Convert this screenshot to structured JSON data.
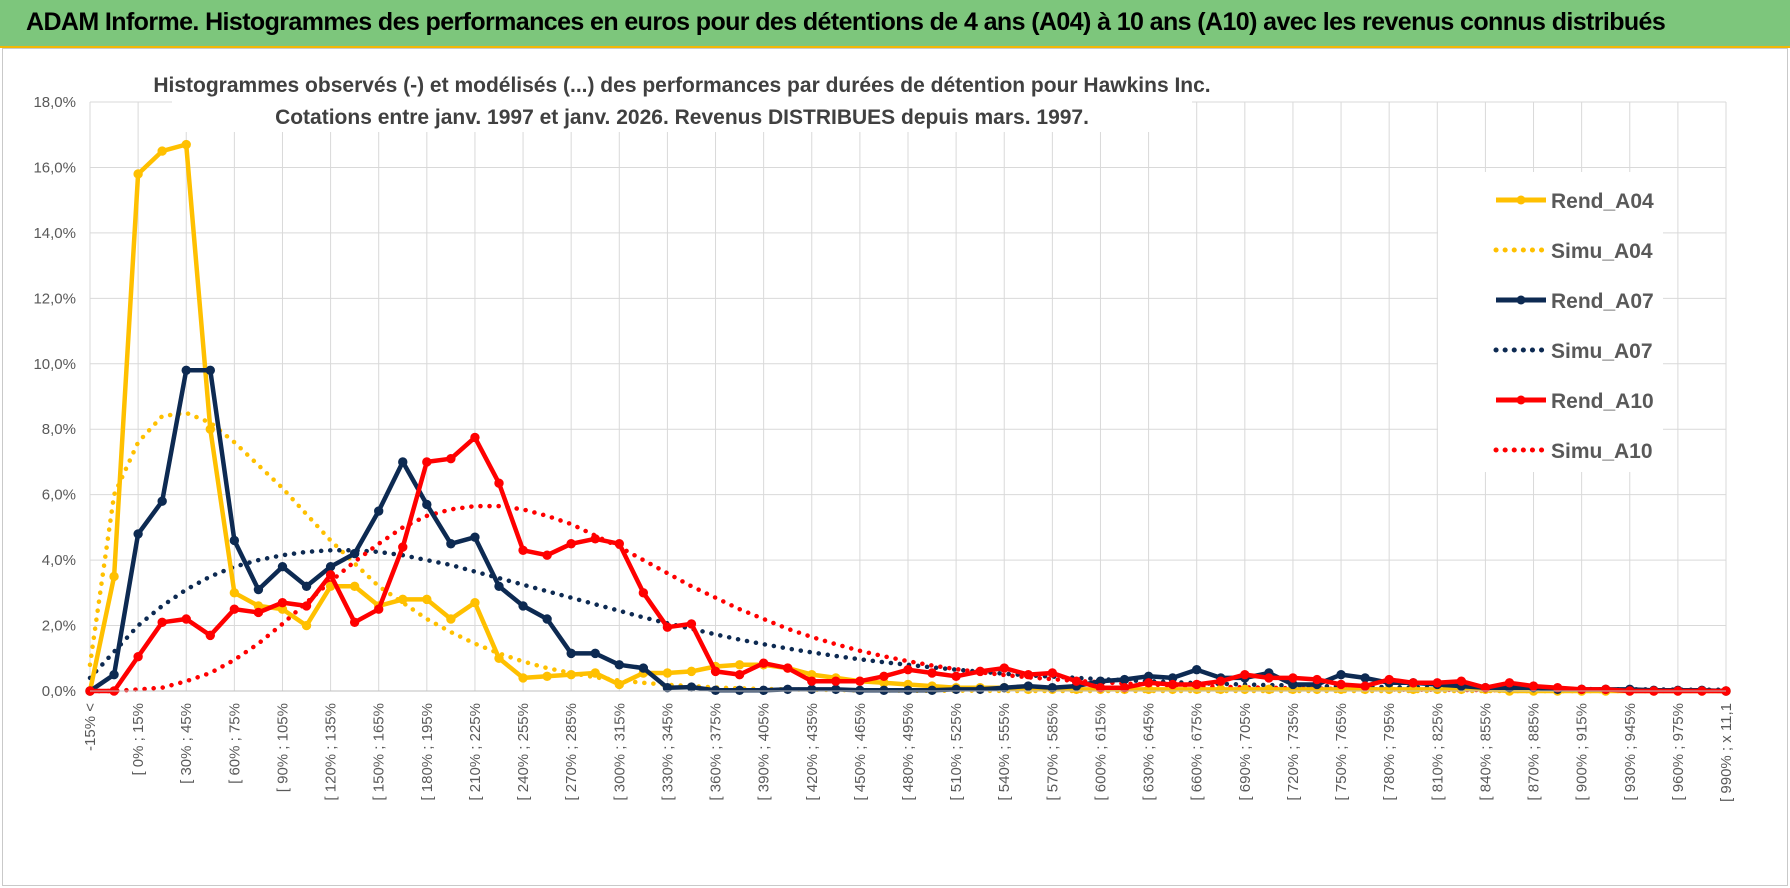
{
  "banner": {
    "title": "ADAM Informe. Histogrammes des performances en euros pour des détentions de 4 ans (A04) à 10 ans (A10) avec les revenus connus distribués",
    "color": "#7dc67c",
    "accent": "#f2b705"
  },
  "chart_data": {
    "type": "line",
    "title": "Histogrammes observés (-) et modélisés (...) des performances par durées de détention pour Hawkins Inc.",
    "subtitle": "Cotations entre janv. 1997 et janv. 2026. Revenus DISTRIBUES depuis mars. 1997.",
    "xlabel": "",
    "ylabel": "",
    "ylim": [
      0,
      18
    ],
    "y_ticks": [
      "0,0%",
      "2,0%",
      "4,0%",
      "6,0%",
      "8,0%",
      "10,0%",
      "12,0%",
      "14,0%",
      "16,0%",
      "18,0%"
    ],
    "x_labels": [
      "-15% <",
      "[ 0% ; 15%",
      "[ 30% ; 45%",
      "[ 60% ; 75%",
      "[ 90% ; 105%",
      "[ 120% ; 135%",
      "[ 150% ; 165%",
      "[ 180% ; 195%",
      "[ 210% ; 225%",
      "[ 240% ; 255%",
      "[ 270% ; 285%",
      "[ 300% ; 315%",
      "[ 330% ; 345%",
      "[ 360% ; 375%",
      "[ 390% ; 405%",
      "[ 420% ; 435%",
      "[ 450% ; 465%",
      "[ 480% ; 495%",
      "[ 510% ; 525%",
      "[ 540% ; 555%",
      "[ 570% ; 585%",
      "[ 600% ; 615%",
      "[ 630% ; 645%",
      "[ 660% ; 675%",
      "[ 690% ; 705%",
      "[ 720% ; 735%",
      "[ 750% ; 765%",
      "[ 780% ; 795%",
      "[ 810% ; 825%",
      "[ 840% ; 855%",
      "[ 870% ; 885%",
      "[ 900% ; 915%",
      "[ 930% ; 945%",
      "[ 960% ; 975%",
      "[ 990% ; x 11,1"
    ],
    "n_bins": 69,
    "legend_position": "right",
    "series": [
      {
        "name": "Rend_A04",
        "style": "solid",
        "markers": true,
        "color": "#ffc000",
        "values": [
          0,
          3.5,
          15.8,
          16.5,
          16.7,
          8.0,
          3.0,
          2.6,
          2.5,
          2.0,
          3.2,
          3.2,
          2.6,
          2.8,
          2.8,
          2.2,
          2.7,
          1.0,
          0.4,
          0.45,
          0.5,
          0.55,
          0.2,
          0.55,
          0.55,
          0.6,
          0.75,
          0.8,
          0.8,
          0.7,
          0.5,
          0.4,
          0.3,
          0.25,
          0.2,
          0.15,
          0.1,
          0.1,
          0.1,
          0.05,
          0.05,
          0.05,
          0.05,
          0.05,
          0.05,
          0.05,
          0.05,
          0.05,
          0.05,
          0.05,
          0.05,
          0.05,
          0.05,
          0.05,
          0.05,
          0.05,
          0.05,
          0.05,
          0.05,
          0,
          0,
          0,
          0,
          0,
          0,
          0,
          0,
          0,
          0
        ]
      },
      {
        "name": "Simu_A04",
        "style": "dotted",
        "markers": false,
        "color": "#ffc000",
        "values": [
          0.8,
          6.0,
          7.6,
          8.4,
          8.5,
          8.2,
          7.6,
          6.9,
          6.2,
          5.4,
          4.6,
          3.9,
          3.2,
          2.7,
          2.2,
          1.8,
          1.45,
          1.15,
          0.9,
          0.7,
          0.55,
          0.42,
          0.32,
          0.25,
          0.19,
          0.15,
          0.11,
          0.08,
          0.06,
          0.05,
          0.04,
          0.03,
          0.02,
          0.02,
          0.01,
          0.01,
          0.01,
          0.01,
          0,
          0,
          0,
          0,
          0,
          0,
          0,
          0,
          0,
          0,
          0,
          0,
          0,
          0,
          0,
          0,
          0,
          0,
          0,
          0,
          0,
          0,
          0,
          0,
          0,
          0,
          0,
          0,
          0,
          0,
          0
        ]
      },
      {
        "name": "Rend_A07",
        "style": "solid",
        "markers": true,
        "color": "#0d2a52",
        "values": [
          0,
          0.5,
          4.8,
          5.8,
          9.8,
          9.8,
          4.6,
          3.1,
          3.8,
          3.2,
          3.8,
          4.2,
          5.5,
          7.0,
          5.7,
          4.5,
          4.7,
          3.2,
          2.6,
          2.2,
          1.15,
          1.15,
          0.8,
          0.7,
          0.1,
          0.12,
          0.02,
          0.02,
          0.02,
          0.05,
          0.05,
          0.05,
          0.02,
          0.02,
          0.02,
          0.02,
          0.05,
          0.05,
          0.1,
          0.15,
          0.1,
          0.15,
          0.3,
          0.35,
          0.45,
          0.4,
          0.65,
          0.4,
          0.4,
          0.55,
          0.2,
          0.2,
          0.5,
          0.4,
          0.25,
          0.25,
          0.2,
          0.15,
          0.1,
          0.1,
          0.1,
          0.05,
          0.05,
          0.05,
          0.05,
          0.02,
          0.02,
          0.02,
          0
        ]
      },
      {
        "name": "Simu_A07",
        "style": "dotted",
        "markers": false,
        "color": "#0d2a52",
        "values": [
          0.4,
          1.2,
          2.0,
          2.6,
          3.1,
          3.5,
          3.8,
          4.0,
          4.15,
          4.25,
          4.3,
          4.3,
          4.25,
          4.15,
          4.0,
          3.85,
          3.65,
          3.45,
          3.25,
          3.05,
          2.85,
          2.65,
          2.45,
          2.25,
          2.07,
          1.9,
          1.73,
          1.57,
          1.43,
          1.3,
          1.18,
          1.07,
          0.97,
          0.88,
          0.8,
          0.72,
          0.65,
          0.59,
          0.53,
          0.48,
          0.44,
          0.4,
          0.36,
          0.33,
          0.3,
          0.27,
          0.24,
          0.22,
          0.2,
          0.18,
          0.17,
          0.15,
          0.14,
          0.13,
          0.12,
          0.11,
          0.1,
          0.09,
          0.08,
          0.07,
          0.07,
          0.06,
          0.06,
          0.05,
          0.05,
          0.05,
          0.04,
          0.04,
          0.04
        ]
      },
      {
        "name": "Rend_A10",
        "style": "solid",
        "markers": true,
        "color": "#ff0000",
        "values": [
          0,
          0,
          1.05,
          2.1,
          2.2,
          1.7,
          2.5,
          2.4,
          2.7,
          2.6,
          3.55,
          2.1,
          2.5,
          4.4,
          7.0,
          7.1,
          7.75,
          6.35,
          4.3,
          4.15,
          4.5,
          4.65,
          4.5,
          3.0,
          1.95,
          2.05,
          0.6,
          0.5,
          0.85,
          0.7,
          0.3,
          0.3,
          0.3,
          0.45,
          0.65,
          0.55,
          0.45,
          0.6,
          0.7,
          0.5,
          0.55,
          0.3,
          0.1,
          0.1,
          0.25,
          0.2,
          0.2,
          0.3,
          0.5,
          0.4,
          0.4,
          0.35,
          0.2,
          0.15,
          0.35,
          0.25,
          0.25,
          0.3,
          0.1,
          0.25,
          0.15,
          0.1,
          0.05,
          0.05,
          0,
          0,
          0,
          0,
          0
        ]
      },
      {
        "name": "Simu_A10",
        "style": "dotted",
        "markers": false,
        "color": "#ff0000",
        "values": [
          0,
          0,
          0.05,
          0.1,
          0.3,
          0.55,
          0.95,
          1.45,
          2.05,
          2.7,
          3.35,
          3.95,
          4.5,
          5.0,
          5.35,
          5.55,
          5.65,
          5.65,
          5.55,
          5.35,
          5.1,
          4.75,
          4.4,
          4.0,
          3.6,
          3.2,
          2.85,
          2.5,
          2.2,
          1.9,
          1.65,
          1.43,
          1.23,
          1.06,
          0.91,
          0.78,
          0.67,
          0.57,
          0.49,
          0.42,
          0.36,
          0.31,
          0.27,
          0.23,
          0.2,
          0.17,
          0.15,
          0.13,
          0.11,
          0.1,
          0.08,
          0.07,
          0.06,
          0.05,
          0.05,
          0.04,
          0.04,
          0.03,
          0.03,
          0.02,
          0.02,
          0.02,
          0.02,
          0.01,
          0.01,
          0.01,
          0.01,
          0.01,
          0
        ]
      }
    ]
  }
}
